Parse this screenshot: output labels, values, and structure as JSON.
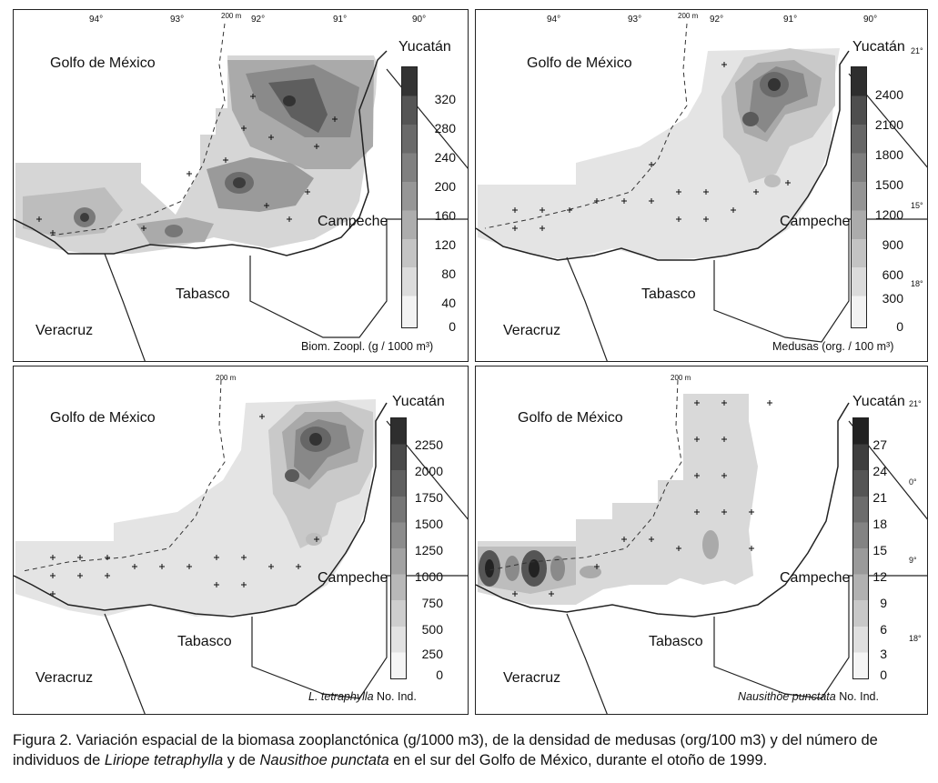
{
  "panels": [
    {
      "gulf_label": "Golfo de México",
      "state_yucatan": "Yucatán",
      "state_campeche": "Campeche",
      "state_tabasco": "Tabasco",
      "state_veracruz": "Veracruz",
      "isobath": "200 m",
      "lon_ticks": [
        "94°",
        "93°",
        "92°",
        "91°",
        "90°"
      ],
      "lat_ticks": [],
      "scale_values": [
        "320",
        "280",
        "240",
        "200",
        "160",
        "120",
        "80",
        "40",
        "0"
      ],
      "unit_italic": "",
      "unit_text": "Biom. Zoopl. (g / 1000 m³)"
    },
    {
      "gulf_label": "Golfo de México",
      "state_yucatan": "Yucatán",
      "state_campeche": "Campeche",
      "state_tabasco": "Tabasco",
      "state_veracruz": "Veracruz",
      "isobath": "200 m",
      "lon_ticks": [
        "94°",
        "93°",
        "92°",
        "91°",
        "90°"
      ],
      "lat_ticks": [
        "21°",
        "15°",
        "18°"
      ],
      "scale_values": [
        "2400",
        "2100",
        "1800",
        "1500",
        "1200",
        "900",
        "600",
        "300",
        "0"
      ],
      "unit_italic": "",
      "unit_text": "Medusas (org. / 100 m³)"
    },
    {
      "gulf_label": "Golfo de México",
      "state_yucatan": "Yucatán",
      "state_campeche": "Campeche",
      "state_tabasco": "Tabasco",
      "state_veracruz": "Veracruz",
      "isobath": "200 m",
      "lon_ticks": [],
      "lat_ticks": [],
      "scale_values": [
        "2250",
        "2000",
        "1750",
        "1500",
        "1250",
        "1000",
        "750",
        "500",
        "250",
        "0"
      ],
      "unit_italic": "L. tetraphylla",
      "unit_text": " No. Ind."
    },
    {
      "gulf_label": "Golfo de México",
      "state_yucatan": "Yucatán",
      "state_campeche": "Campeche",
      "state_tabasco": "Tabasco",
      "state_veracruz": "Veracruz",
      "isobath": "200 m",
      "lon_ticks": [],
      "lat_ticks": [
        "21°",
        "0°",
        "9°",
        "18°"
      ],
      "scale_values": [
        "27",
        "24",
        "21",
        "18",
        "15",
        "12",
        "9",
        "6",
        "3",
        "0"
      ],
      "unit_italic": "Nausithöe punctata",
      "unit_text": " No. Ind."
    }
  ],
  "caption": {
    "p1": "Figura 2. Variación espacial de la biomasa zooplanctónica (g/1000 m3), de la densidad de medusas (org/100 m3) y del número de individuos de ",
    "i1": "Liriope tetraphylla",
    "p2": " y de ",
    "i2": "Nausithoe punctata",
    "p3": " en el sur del Golfo de México, durante el otoño de 1999."
  },
  "colors": {
    "ramp_light": "#f0f0f0",
    "ramp_dark": "#2b2b2b",
    "line": "#222222"
  }
}
